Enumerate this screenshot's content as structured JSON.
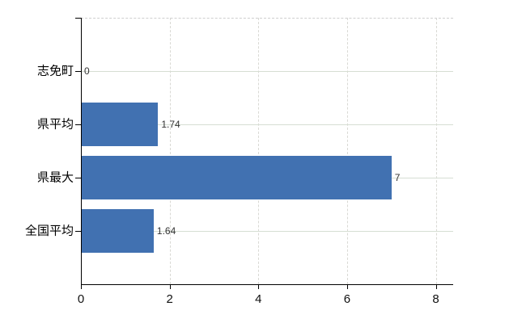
{
  "chart_data": {
    "type": "bar",
    "orientation": "horizontal",
    "title": "",
    "xlabel": "",
    "ylabel": "",
    "categories": [
      "志免町",
      "県平均",
      "県最大",
      "全国平均"
    ],
    "values": [
      0,
      1.74,
      7,
      1.64
    ],
    "value_labels": [
      "0",
      "1.74",
      "7",
      "1.64"
    ],
    "x_ticks": [
      0,
      2,
      4,
      6,
      8
    ],
    "x_tick_labels": [
      "0",
      "2",
      "4",
      "6",
      "8"
    ],
    "xlim": [
      0,
      8.4
    ],
    "grid": true,
    "legend": "none",
    "colors": {
      "bar": "#4171b1",
      "axis": "#000000",
      "vertical_gridline": "#d9d9d4",
      "horizontal_gridline": "#d6ded3",
      "top_border": "#cfcfcf",
      "category_label": "#000000",
      "value_label": "#333333",
      "background": "#ffffff"
    }
  }
}
